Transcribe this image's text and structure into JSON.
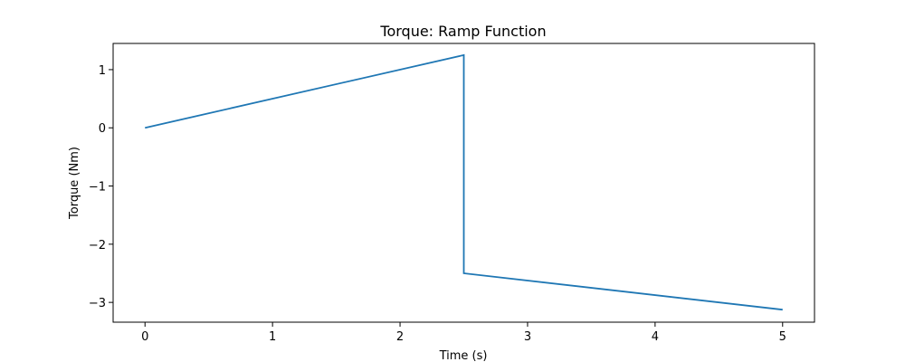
{
  "chart_data": {
    "type": "line",
    "title": "Torque: Ramp Function",
    "xlabel": "Time (s)",
    "ylabel": "Torque (Nm)",
    "xlim": [
      -0.25,
      5.25
    ],
    "ylim": [
      -3.34,
      1.45
    ],
    "xticks": [
      0,
      1,
      2,
      3,
      4,
      5
    ],
    "xtick_labels": [
      "0",
      "1",
      "2",
      "3",
      "4",
      "5"
    ],
    "yticks": [
      1,
      0,
      -1,
      -2,
      -3
    ],
    "ytick_labels": [
      "1",
      "0",
      "−1",
      "−2",
      "−3"
    ],
    "grid": false,
    "series": [
      {
        "color": "#1f77b4",
        "x": [
          0,
          2.5,
          2.5,
          5
        ],
        "y": [
          0,
          1.25,
          -2.5,
          -3.125
        ]
      }
    ]
  }
}
